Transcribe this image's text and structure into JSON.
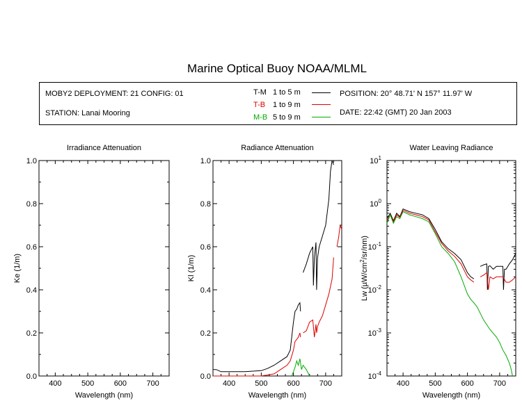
{
  "title": "Marine Optical Buoy NOAA/MLML",
  "info": {
    "deployment": "MOBY2 DEPLOYMENT: 21 CONFIG: 01",
    "station": "STATION: Lanai Mooring",
    "position": "POSITION: 20° 48.71' N   157° 11.97' W",
    "date": "DATE: 22:42 (GMT) 20 Jan 2003"
  },
  "legend": [
    {
      "code": "T-M",
      "range": "1 to 5  m",
      "color": "#000000"
    },
    {
      "code": "T-B",
      "range": "1 to 9  m",
      "color": "#dd0000"
    },
    {
      "code": "M-B",
      "range": "5 to 9  m",
      "color": "#00aa00"
    }
  ],
  "chart_data": [
    {
      "type": "line",
      "title": "Irradiance Attenuation",
      "xlabel": "Wavelength (nm)",
      "ylabel": "Ke  (1/m)",
      "xlim": [
        350,
        750
      ],
      "ylim": [
        0,
        1.0
      ],
      "xticks": [
        "400",
        "500",
        "600",
        "700"
      ],
      "yticks": [
        "0.0",
        "0.2",
        "0.4",
        "0.6",
        "0.8",
        "1.0"
      ],
      "series": []
    },
    {
      "type": "line",
      "title": "Radiance Attenuation",
      "xlabel": "Wavelength (nm)",
      "ylabel": "Kl  (1/m)",
      "xlim": [
        350,
        750
      ],
      "ylim": [
        0,
        1.0
      ],
      "xticks": [
        "400",
        "500",
        "600",
        "700"
      ],
      "yticks": [
        "0.0",
        "0.2",
        "0.4",
        "0.6",
        "0.8",
        "1.0"
      ],
      "series": [
        {
          "color": "#000000",
          "x": [
            350,
            360,
            375,
            400,
            450,
            500,
            520,
            540,
            560,
            580,
            590,
            600,
            605,
            610,
            615,
            620,
            622
          ],
          "y": [
            0.03,
            0.03,
            0.02,
            0.02,
            0.02,
            0.025,
            0.035,
            0.05,
            0.07,
            0.09,
            0.12,
            0.25,
            0.3,
            0.31,
            0.33,
            0.34,
            0.3
          ]
        },
        {
          "color": "#000000",
          "x": [
            630,
            640,
            650,
            660,
            662,
            665,
            670,
            672,
            675,
            680,
            690,
            700,
            710,
            715,
            720,
            725
          ],
          "y": [
            0.48,
            0.52,
            0.57,
            0.6,
            0.42,
            0.55,
            0.62,
            0.4,
            0.55,
            0.6,
            0.65,
            0.7,
            0.82,
            0.95,
            1.0,
            0.98
          ]
        },
        {
          "color": "#dd0000",
          "x": [
            350,
            400,
            450,
            500,
            520,
            540,
            560,
            580,
            590,
            600,
            605,
            610,
            615,
            620,
            622
          ],
          "y": [
            0.0,
            0.0,
            0.0,
            0.0,
            0.005,
            0.01,
            0.03,
            0.05,
            0.07,
            0.12,
            0.16,
            0.17,
            0.18,
            0.2,
            0.18
          ]
        },
        {
          "color": "#dd0000",
          "x": [
            630,
            640,
            650,
            660,
            665,
            670,
            672,
            675,
            680,
            690,
            700,
            710,
            720,
            725
          ],
          "y": [
            0.2,
            0.21,
            0.25,
            0.26,
            0.18,
            0.24,
            0.2,
            0.23,
            0.25,
            0.28,
            0.33,
            0.38,
            0.45,
            0.55
          ]
        },
        {
          "color": "#dd0000",
          "x": [
            735,
            740,
            745,
            750
          ],
          "y": [
            0.6,
            0.64,
            0.7,
            0.68
          ]
        },
        {
          "color": "#00aa00",
          "x": [
            595,
            600,
            605,
            610,
            615,
            620,
            625,
            630,
            640,
            650
          ],
          "y": [
            0.0,
            0.02,
            0.04,
            0.07,
            0.05,
            0.08,
            0.03,
            0.05,
            0.03,
            0.0
          ]
        }
      ]
    },
    {
      "type": "line",
      "title": "Water Leaving Radiance",
      "xlabel": "Wavelength (nm)",
      "ylabel": "Lw  (µW/cm²/sr/nm)",
      "scale": "log",
      "xlim": [
        350,
        750
      ],
      "ylim": [
        0.0001,
        10
      ],
      "xticks": [
        "400",
        "500",
        "600",
        "700"
      ],
      "yticks": [
        "10-4",
        "10-3",
        "10-2",
        "10-1",
        "100",
        "101"
      ],
      "series": [
        {
          "color": "#000000",
          "x": [
            350,
            360,
            370,
            380,
            390,
            400,
            420,
            440,
            460,
            480,
            500,
            520,
            540,
            560,
            580,
            600,
            610,
            620
          ],
          "y": [
            0.45,
            0.6,
            0.4,
            0.6,
            0.5,
            0.75,
            0.65,
            0.6,
            0.55,
            0.45,
            0.25,
            0.13,
            0.09,
            0.07,
            0.05,
            0.025,
            0.02,
            0.018
          ]
        },
        {
          "color": "#000000",
          "x": [
            640,
            650,
            660,
            662,
            665,
            670,
            672,
            680,
            690,
            700,
            710,
            712,
            715,
            720,
            730,
            740,
            750
          ],
          "y": [
            0.035,
            0.038,
            0.04,
            0.01,
            0.035,
            0.036,
            0.035,
            0.03,
            0.035,
            0.035,
            0.035,
            0.01,
            0.03,
            0.03,
            0.04,
            0.05,
            0.07
          ]
        },
        {
          "color": "#dd0000",
          "x": [
            350,
            360,
            370,
            380,
            390,
            400,
            420,
            440,
            460,
            480,
            500,
            520,
            540,
            560,
            580,
            600,
            610,
            620
          ],
          "y": [
            0.4,
            0.55,
            0.38,
            0.55,
            0.48,
            0.7,
            0.6,
            0.55,
            0.5,
            0.42,
            0.22,
            0.12,
            0.08,
            0.06,
            0.04,
            0.02,
            0.017,
            0.015
          ]
        },
        {
          "color": "#dd0000",
          "x": [
            640,
            650,
            660,
            665,
            670,
            680,
            690,
            700,
            710,
            720,
            730,
            740,
            750
          ],
          "y": [
            0.02,
            0.022,
            0.025,
            0.01,
            0.02,
            0.018,
            0.02,
            0.02,
            0.02,
            0.015,
            0.015,
            0.017,
            0.02
          ]
        },
        {
          "color": "#00aa00",
          "x": [
            350,
            360,
            370,
            380,
            390,
            400,
            420,
            440,
            460,
            480,
            500,
            520,
            540,
            560,
            580,
            600,
            610,
            620,
            630,
            650,
            670,
            690,
            700,
            710,
            720,
            730,
            735,
            740
          ],
          "y": [
            0.35,
            0.55,
            0.35,
            0.5,
            0.45,
            0.65,
            0.55,
            0.5,
            0.45,
            0.38,
            0.2,
            0.1,
            0.07,
            0.045,
            0.02,
            0.008,
            0.006,
            0.005,
            0.004,
            0.002,
            0.0012,
            0.0008,
            0.0006,
            0.0004,
            0.0003,
            0.0002,
            0.00015,
            0.0001
          ]
        }
      ]
    }
  ]
}
